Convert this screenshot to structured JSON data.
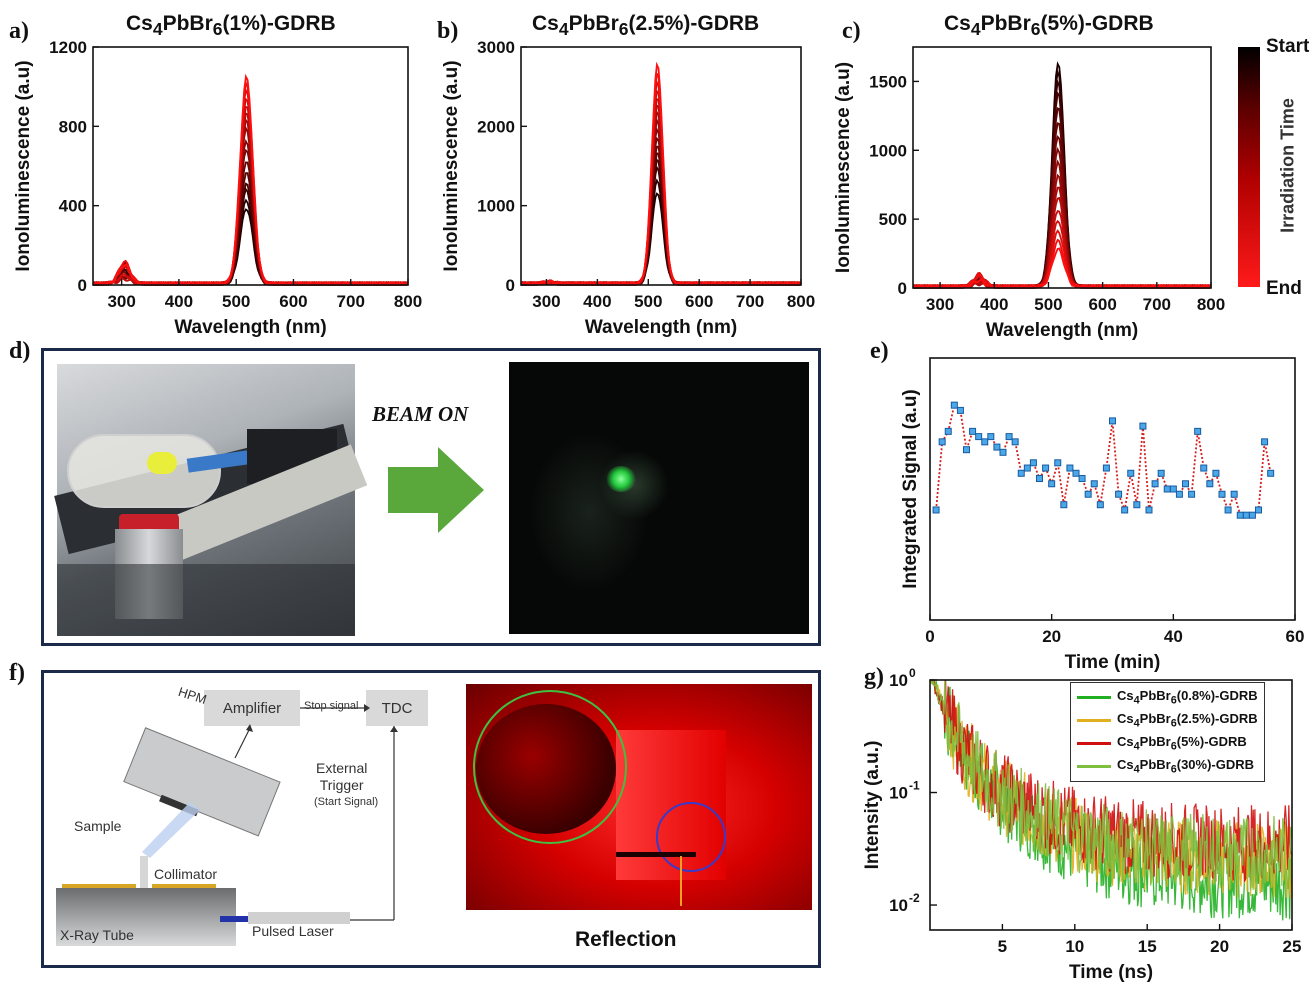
{
  "panels": {
    "a": {
      "letter": "a)",
      "title_main": "Cs",
      "title_sub1": "4",
      "title_mid": "PbBr",
      "title_sub2": "6",
      "title_rest": "(1%)-GDRB"
    },
    "b": {
      "letter": "b)",
      "title_main": "Cs",
      "title_sub1": "4",
      "title_mid": "PbBr",
      "title_sub2": "6",
      "title_rest": "(2.5%)-GDRB"
    },
    "c": {
      "letter": "c)",
      "title_main": "Cs",
      "title_sub1": "4",
      "title_mid": "PbBr",
      "title_sub2": "6",
      "title_rest": "(5%)-GDRB"
    },
    "d": {
      "letter": "d)",
      "beam_label": "BEAM ON"
    },
    "e": {
      "letter": "e)"
    },
    "f": {
      "letter": "f)",
      "amplifier": "Amplifier",
      "stop_signal": "Stop signal",
      "tdc": "TDC",
      "hpm": "HPM",
      "external_trigger": "External\nTrigger",
      "start_signal": "(Start Signal)",
      "sample": "Sample",
      "collimator": "Collimator",
      "xray_tube": "X-Ray Tube",
      "pulsed_laser": "Pulsed Laser",
      "reflection": "Reflection"
    },
    "g": {
      "letter": "g)"
    }
  },
  "colorbar": {
    "start": "Start",
    "end": "End",
    "label": "Irradiation Time",
    "colors": [
      "#000000",
      "#ff0000"
    ]
  },
  "chart_data": [
    {
      "id": "a",
      "type": "line",
      "title": "Cs4PbBr6(1%)-GDRB",
      "xlabel": "Wavelength (nm)",
      "ylabel": "Ionoluminescence (a.u)",
      "xlim": [
        250,
        800
      ],
      "ylim": [
        0,
        1200
      ],
      "xticks": [
        300,
        400,
        500,
        600,
        700,
        800
      ],
      "yticks": [
        0,
        400,
        800,
        1200
      ],
      "peak_center": 518,
      "peak_width": 11,
      "series_peaks": [
        380,
        420,
        470,
        500,
        560,
        620,
        680,
        720,
        780,
        820,
        860,
        900,
        940,
        980,
        1010,
        1040
      ],
      "minor_peak": {
        "x": 305,
        "y": 110
      }
    },
    {
      "id": "b",
      "type": "line",
      "title": "Cs4PbBr6(2.5%)-GDRB",
      "xlabel": "Wavelength (nm)",
      "ylabel": "Ionoluminescence (a.u)",
      "xlim": [
        250,
        800
      ],
      "ylim": [
        0,
        3000
      ],
      "xticks": [
        300,
        400,
        500,
        600,
        700,
        800
      ],
      "yticks": [
        0,
        1000,
        2000,
        3000
      ],
      "peak_center": 518,
      "peak_width": 11,
      "series_peaks": [
        1150,
        1300,
        1450,
        1550,
        1650,
        1750,
        1850,
        1950,
        2050,
        2150,
        2250,
        2350,
        2450,
        2550,
        2650,
        2750
      ],
      "minor_peak": {
        "x": 305,
        "y": 25
      }
    },
    {
      "id": "c",
      "type": "line",
      "title": "Cs4PbBr6(5%)-GDRB",
      "xlabel": "Wavelength (nm)",
      "ylabel": "Ionoluminescence (a.u)",
      "xlim": [
        250,
        800
      ],
      "ylim": [
        0,
        1750
      ],
      "xticks": [
        300,
        400,
        500,
        600,
        700,
        800
      ],
      "yticks": [
        0,
        500,
        1000,
        1500
      ],
      "peak_center": 518,
      "peak_width": 11,
      "series_peaks": [
        1630,
        1560,
        1480,
        1400,
        1300,
        1200,
        1100,
        1000,
        900,
        800,
        720,
        650,
        560,
        480,
        400,
        330,
        270
      ],
      "minor_peak": {
        "x": 372,
        "y": 90
      }
    },
    {
      "id": "e",
      "type": "line",
      "xlabel": "Time (min)",
      "ylabel": "Integrated Signal (a.u)",
      "xlim": [
        0,
        60
      ],
      "ylim": [
        0,
        1
      ],
      "xticks": [
        0,
        20,
        40,
        60
      ],
      "x": [
        1,
        2,
        3,
        4,
        5,
        6,
        7,
        8,
        9,
        10,
        11,
        12,
        13,
        14,
        15,
        16,
        17,
        18,
        19,
        20,
        21,
        22,
        23,
        24,
        25,
        26,
        27,
        28,
        29,
        30,
        31,
        32,
        33,
        34,
        35,
        36,
        37,
        38,
        39,
        40,
        41,
        42,
        43,
        44,
        45,
        46,
        47,
        48,
        49,
        50,
        51,
        52,
        53,
        54,
        55,
        56
      ],
      "y": [
        0.42,
        0.68,
        0.72,
        0.82,
        0.8,
        0.65,
        0.72,
        0.7,
        0.68,
        0.7,
        0.66,
        0.64,
        0.7,
        0.68,
        0.56,
        0.58,
        0.6,
        0.54,
        0.58,
        0.52,
        0.6,
        0.44,
        0.58,
        0.56,
        0.54,
        0.48,
        0.52,
        0.44,
        0.58,
        0.76,
        0.48,
        0.42,
        0.56,
        0.44,
        0.74,
        0.42,
        0.52,
        0.56,
        0.5,
        0.5,
        0.48,
        0.52,
        0.48,
        0.72,
        0.58,
        0.52,
        0.56,
        0.48,
        0.42,
        0.48,
        0.4,
        0.4,
        0.4,
        0.42,
        0.68,
        0.56
      ]
    },
    {
      "id": "g",
      "type": "line",
      "yscale": "log",
      "xlabel": "Time (ns)",
      "ylabel": "Intensity (a.u.)",
      "xlim": [
        0,
        25
      ],
      "ylim": [
        0.006,
        1
      ],
      "xticks": [
        5,
        10,
        15,
        20,
        25
      ],
      "yticks": [
        0.01,
        0.1,
        1
      ],
      "series": [
        {
          "name": "Cs4PbBr6(0.8%)-GDRB",
          "color": "#22b022",
          "plateau": 0.016
        },
        {
          "name": "Cs4PbBr6(2.5%)-GDRB",
          "color": "#e0b020",
          "plateau": 0.025
        },
        {
          "name": "Cs4PbBr6(5%)-GDRB",
          "color": "#d01010",
          "plateau": 0.035
        },
        {
          "name": "Cs4PbBr6(30%)-GDRB",
          "color": "#7fbf3f",
          "plateau": 0.028
        }
      ]
    }
  ]
}
